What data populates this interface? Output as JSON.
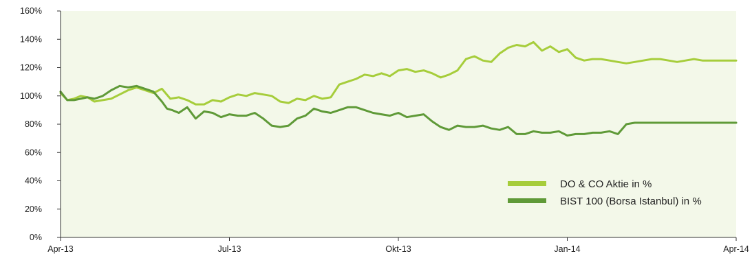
{
  "chart_data": {
    "type": "line",
    "title": "",
    "xlabel": "",
    "ylabel": "",
    "x_ticks": [
      "Apr-13",
      "Jul-13",
      "Okt-13",
      "Jan-14",
      "Apr-14"
    ],
    "y_ticks": [
      "0%",
      "20%",
      "40%",
      "60%",
      "80%",
      "100%",
      "120%",
      "140%",
      "160%"
    ],
    "ylim": [
      0,
      160
    ],
    "grid": false,
    "legend_position": "bottom-right",
    "plot_background": "#f3f8e9",
    "series": [
      {
        "name": "DO & CO Aktie in %",
        "color": "#a6cd3b",
        "x": [
          0,
          0.04,
          0.08,
          0.12,
          0.16,
          0.2,
          0.25,
          0.3,
          0.35,
          0.4,
          0.45,
          0.5,
          0.55,
          0.6,
          0.65,
          0.7,
          0.75,
          0.8,
          0.85,
          0.9,
          0.95,
          1.0,
          1.05,
          1.1,
          1.15,
          1.2,
          1.25,
          1.3,
          1.35,
          1.4,
          1.45,
          1.5,
          1.55,
          1.6,
          1.65,
          1.7,
          1.75,
          1.8,
          1.85,
          1.9,
          1.95,
          2.0,
          2.05,
          2.1,
          2.15,
          2.2,
          2.25,
          2.3,
          2.35,
          2.4,
          2.45,
          2.5,
          2.55,
          2.6,
          2.65,
          2.7,
          2.75,
          2.8,
          2.85,
          2.9,
          2.95,
          3.0,
          3.05,
          3.1,
          3.15,
          3.2,
          3.25,
          3.3,
          3.35,
          3.4,
          3.45,
          3.5,
          3.55,
          3.6,
          3.65,
          3.7,
          3.75,
          3.8,
          3.85,
          3.9,
          3.95,
          4.0
        ],
        "y": [
          102,
          97,
          98,
          100,
          99,
          96,
          97,
          98,
          101,
          104,
          106,
          104,
          102,
          105,
          98,
          99,
          97,
          94,
          94,
          97,
          96,
          99,
          101,
          100,
          102,
          101,
          100,
          96,
          95,
          98,
          97,
          100,
          98,
          99,
          108,
          110,
          112,
          115,
          114,
          116,
          114,
          118,
          119,
          117,
          118,
          116,
          113,
          115,
          118,
          126,
          128,
          125,
          124,
          130,
          134,
          136,
          135,
          138,
          132,
          135,
          131,
          133,
          127,
          125,
          126,
          126,
          125,
          124,
          123,
          124,
          125,
          126,
          126,
          125,
          124,
          125,
          126,
          125,
          125,
          125,
          125,
          125
        ]
      },
      {
        "name": "BIST 100 (Borsa Istanbul) in %",
        "color": "#5f9a38",
        "x": [
          0,
          0.04,
          0.08,
          0.12,
          0.16,
          0.2,
          0.25,
          0.3,
          0.35,
          0.4,
          0.45,
          0.5,
          0.55,
          0.6,
          0.63,
          0.66,
          0.7,
          0.75,
          0.8,
          0.85,
          0.9,
          0.95,
          1.0,
          1.05,
          1.1,
          1.15,
          1.2,
          1.25,
          1.3,
          1.35,
          1.4,
          1.45,
          1.5,
          1.55,
          1.6,
          1.65,
          1.7,
          1.75,
          1.8,
          1.85,
          1.9,
          1.95,
          2.0,
          2.05,
          2.1,
          2.15,
          2.2,
          2.25,
          2.3,
          2.35,
          2.4,
          2.45,
          2.5,
          2.55,
          2.6,
          2.65,
          2.7,
          2.75,
          2.8,
          2.85,
          2.9,
          2.95,
          3.0,
          3.05,
          3.1,
          3.15,
          3.2,
          3.25,
          3.3,
          3.35,
          3.4,
          3.45,
          3.5,
          3.55,
          3.6,
          3.65,
          3.7,
          3.75,
          3.8,
          3.85,
          3.9,
          3.95,
          4.0
        ],
        "y": [
          103,
          97,
          97,
          98,
          99,
          98,
          100,
          104,
          107,
          106,
          107,
          105,
          103,
          96,
          91,
          90,
          88,
          92,
          84,
          89,
          88,
          85,
          87,
          86,
          86,
          88,
          84,
          79,
          78,
          79,
          84,
          86,
          91,
          89,
          88,
          90,
          92,
          92,
          90,
          88,
          87,
          86,
          88,
          85,
          86,
          87,
          82,
          78,
          76,
          79,
          78,
          78,
          79,
          77,
          76,
          78,
          73,
          73,
          75,
          74,
          74,
          75,
          72,
          73,
          73,
          74,
          74,
          75,
          73,
          80,
          81,
          81,
          81,
          81,
          81,
          81,
          81,
          81,
          81,
          81,
          81,
          81,
          81
        ]
      }
    ]
  }
}
